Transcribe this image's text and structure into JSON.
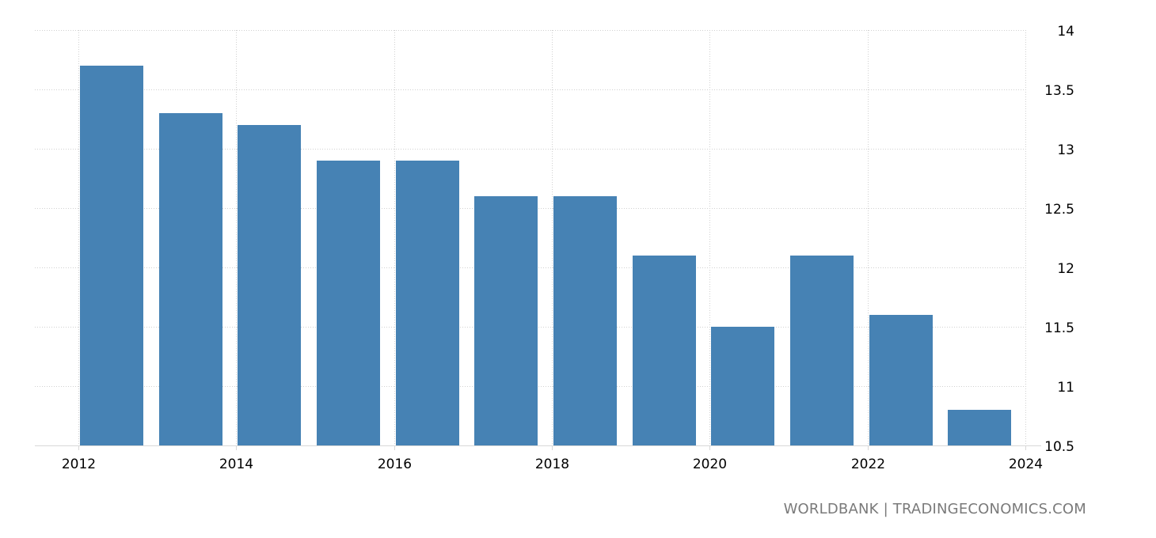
{
  "source": "WORLDBANK | TRADINGECONOMICS.COM",
  "chart_data": {
    "type": "bar",
    "title": "",
    "xlabel": "",
    "ylabel": "",
    "categories": [
      "2012",
      "2013",
      "2014",
      "2015",
      "2016",
      "2017",
      "2018",
      "2019",
      "2020",
      "2021",
      "2022",
      "2023"
    ],
    "values": [
      13.7,
      13.3,
      13.2,
      12.9,
      12.9,
      12.6,
      12.6,
      12.1,
      11.5,
      12.1,
      11.6,
      10.8
    ],
    "x_ticks": [
      "2012",
      "2014",
      "2016",
      "2018",
      "2020",
      "2022",
      "2024"
    ],
    "y_ticks": [
      "14",
      "13.5",
      "13",
      "12.5",
      "12",
      "11.5",
      "11",
      "10.5"
    ],
    "ylim": [
      10.5,
      14
    ],
    "y_axis_position": "right",
    "grid": true,
    "legend": "none",
    "colors": {
      "bar": "#4682b4",
      "grid": "#d0d0d0",
      "axis": "#d8d8d8",
      "source": "#7a7a7a"
    }
  }
}
